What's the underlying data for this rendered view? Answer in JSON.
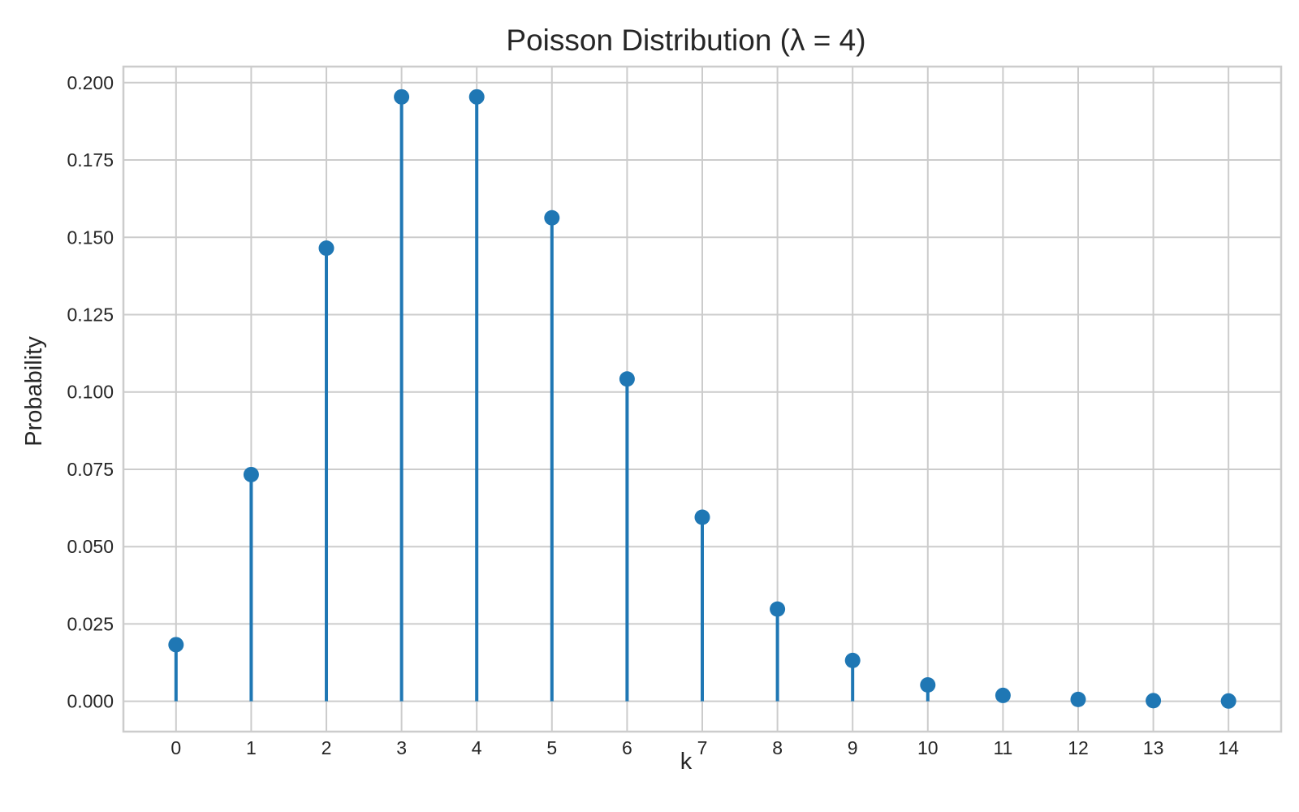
{
  "chart_data": {
    "type": "stem",
    "title": "Poisson Distribution (λ = 4)",
    "xlabel": "k",
    "ylabel": "Probability",
    "x": [
      0,
      1,
      2,
      3,
      4,
      5,
      6,
      7,
      8,
      9,
      10,
      11,
      12,
      13,
      14
    ],
    "values": [
      0.0183,
      0.0733,
      0.1465,
      0.1954,
      0.1954,
      0.1563,
      0.1042,
      0.0595,
      0.0298,
      0.0132,
      0.0053,
      0.0019,
      0.0006,
      0.0002,
      0.0001
    ],
    "xlim": [
      -0.7,
      14.7
    ],
    "ylim": [
      -0.0098,
      0.2052
    ],
    "x_ticks": [
      "0",
      "1",
      "2",
      "3",
      "4",
      "5",
      "6",
      "7",
      "8",
      "9",
      "10",
      "11",
      "12",
      "13",
      "14"
    ],
    "y_ticks": [
      "0.000",
      "0.025",
      "0.050",
      "0.075",
      "0.100",
      "0.125",
      "0.150",
      "0.175",
      "0.200"
    ],
    "y_tick_values": [
      0,
      0.025,
      0.05,
      0.075,
      0.1,
      0.125,
      0.15,
      0.175,
      0.2
    ],
    "grid": true,
    "color": "#1f77b4"
  }
}
